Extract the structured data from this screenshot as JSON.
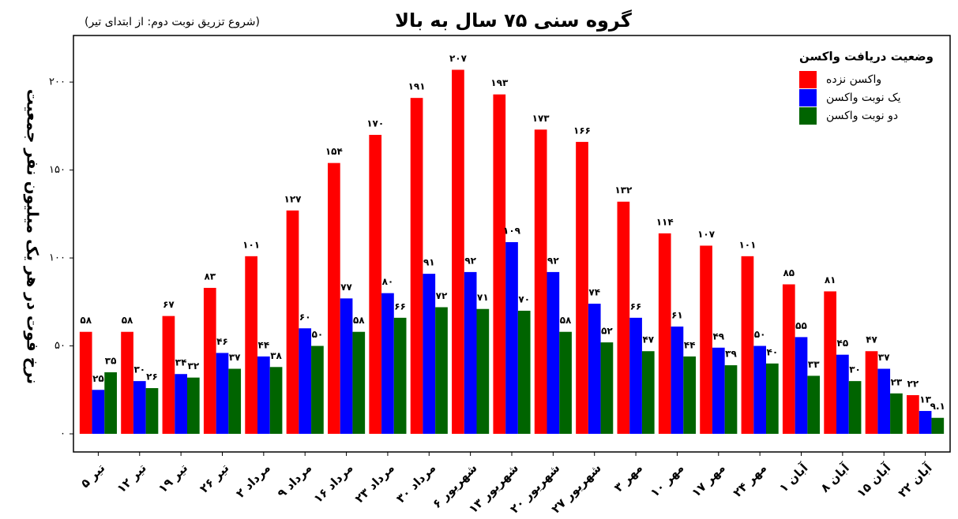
{
  "chart_data": {
    "type": "bar",
    "title": "گروه سنی ۷۵ سال به بالا",
    "subtitle": "(شروع تزریق نوبت دوم: از ابتدای تیر)",
    "y_label": "نرخ فوت در هر یک میلیون نفر جمعیت",
    "legend_title": "وضعیت دریافت واکسن",
    "legend_position": "topright",
    "categories": [
      "۵ تیر",
      "۱۲ تیر",
      "۱۹ تیر",
      "۲۶ تیر",
      "۲ مرداد",
      "۹ مرداد",
      "۱۶ مرداد",
      "۲۳ مرداد",
      "۳۰ مرداد",
      "۶ شهریور",
      "۱۳ شهریور",
      "۲۰ شهریور",
      "۲۷ شهریور",
      "۳ مهر",
      "۱۰ مهر",
      "۱۷ مهر",
      "۲۴ مهر",
      "۱ آبان",
      "۸ آبان",
      "۱۵ آبان",
      "۲۲ آبان"
    ],
    "series": [
      {
        "name": "واکسن نزده",
        "color": "#ff0000",
        "values": [
          58,
          58,
          67,
          83,
          101,
          127,
          154,
          170,
          191,
          207,
          193,
          173,
          166,
          132,
          114,
          107,
          101,
          85,
          81,
          47,
          22
        ],
        "value_labels": [
          "۵۸",
          "۵۸",
          "۶۷",
          "۸۳",
          "۱۰۱",
          "۱۲۷",
          "۱۵۴",
          "۱۷۰",
          "۱۹۱",
          "۲۰۷",
          "۱۹۳",
          "۱۷۳",
          "۱۶۶",
          "۱۳۲",
          "۱۱۴",
          "۱۰۷",
          "۱۰۱",
          "۸۵",
          "۸۱",
          "۴۷",
          "۲۲"
        ]
      },
      {
        "name": "یک نوبت واکسن",
        "color": "#0000ff",
        "values": [
          25,
          30,
          34,
          46,
          44,
          60,
          77,
          80,
          91,
          92,
          109,
          92,
          74,
          66,
          61,
          49,
          50,
          55,
          45,
          37,
          13
        ],
        "value_labels": [
          "۲۵",
          "۳۰",
          "۳۴",
          "۴۶",
          "۴۴",
          "۶۰",
          "۷۷",
          "۸۰",
          "۹۱",
          "۹۲",
          "۱۰۹",
          "۹۲",
          "۷۴",
          "۶۶",
          "۶۱",
          "۴۹",
          "۵۰",
          "۵۵",
          "۴۵",
          "۳۷",
          "۱۳"
        ]
      },
      {
        "name": "دو نوبت واکسن",
        "color": "#006400",
        "values": [
          35,
          26,
          32,
          37,
          38,
          50,
          58,
          66,
          72,
          71,
          70,
          58,
          52,
          47,
          44,
          39,
          40,
          33,
          30,
          23,
          9.1
        ],
        "value_labels": [
          "۳۵",
          "۲۶",
          "۳۲",
          "۳۷",
          "۳۸",
          "۵۰",
          "۵۸",
          "۶۶",
          "۷۲",
          "۷۱",
          "۷۰",
          "۵۸",
          "۵۲",
          "۴۷",
          "۴۴",
          "۳۹",
          "۴۰",
          "۳۳",
          "۳۰",
          "۲۳",
          "۹.۱"
        ]
      }
    ],
    "ylim": [
      -10.3,
      226.5
    ],
    "yticks": [
      {
        "value": 0,
        "label": "۰"
      },
      {
        "value": 50,
        "label": "۵۰"
      },
      {
        "value": 100,
        "label": "۱۰۰"
      },
      {
        "value": 150,
        "label": "۱۵۰"
      },
      {
        "value": 200,
        "label": "۲۰۰"
      }
    ],
    "grid": false
  }
}
